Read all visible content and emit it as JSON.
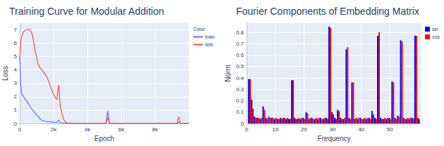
{
  "chart_data": [
    {
      "type": "line",
      "title": "Training Curve for Modular Addition",
      "x_label": "Epoch",
      "y_label": "Loss",
      "legend_title": "Color",
      "legend": "right",
      "grid": true,
      "x": [
        0,
        50,
        100,
        200,
        300,
        400,
        500,
        600,
        700,
        800,
        900,
        1000,
        1100,
        1200,
        1300,
        1400,
        1500,
        1600,
        1700,
        1800,
        1900,
        2000,
        2100,
        2200,
        2300,
        2400,
        2500,
        2600,
        2700,
        2800,
        3000,
        3500,
        4000,
        4500,
        5000,
        5100,
        5200,
        5300,
        5500,
        6000,
        6500,
        7000,
        7500,
        8000,
        8500,
        9000,
        9300,
        9400,
        9500,
        10000
      ],
      "series": [
        {
          "name": "train",
          "color": "#636efa",
          "values": [
            5.0,
            3.2,
            2.3,
            2.05,
            1.85,
            1.7,
            1.5,
            1.3,
            1.1,
            0.95,
            0.8,
            0.65,
            0.5,
            0.35,
            0.25,
            0.2,
            0.17,
            0.15,
            0.13,
            0.12,
            0.11,
            0.1,
            0.09,
            0.08,
            0.25,
            0.06,
            0.04,
            0.03,
            0.02,
            0.02,
            0.01,
            0.01,
            0.01,
            0.01,
            0.01,
            0.01,
            0.95,
            0.02,
            0.01,
            0.01,
            0.01,
            0.01,
            0.01,
            0.01,
            0.01,
            0.01,
            0.01,
            0.1,
            0.01,
            0.01
          ]
        },
        {
          "name": "test",
          "color": "#ef553b",
          "values": [
            4.8,
            6.0,
            6.4,
            6.8,
            6.95,
            7.0,
            7.05,
            7.0,
            6.8,
            6.3,
            5.5,
            4.9,
            4.4,
            4.15,
            4.0,
            3.85,
            3.7,
            3.5,
            3.2,
            2.8,
            2.5,
            2.2,
            1.9,
            1.8,
            2.9,
            1.3,
            0.7,
            0.3,
            0.15,
            0.05,
            0.03,
            0.02,
            0.02,
            0.02,
            0.02,
            0.02,
            0.45,
            0.02,
            0.02,
            0.02,
            0.02,
            0.02,
            0.02,
            0.02,
            0.02,
            0.02,
            0.02,
            0.5,
            0.02,
            0.02
          ]
        }
      ],
      "xlim": [
        0,
        10000
      ],
      "xticks": [
        0,
        {
          "value": 2000,
          "label": "2k"
        },
        {
          "value": 4000,
          "label": "4k"
        },
        {
          "value": 6000,
          "label": "6k"
        },
        {
          "value": 8000,
          "label": "8k"
        }
      ],
      "ylim": [
        0,
        7.5
      ],
      "yticks": [
        0,
        1,
        2,
        3,
        4,
        5,
        6,
        7
      ]
    },
    {
      "type": "bar",
      "title": "Fourier Components of Embedding Matrix",
      "x_label": "Frequency",
      "y_label": "Norm",
      "legend": "right",
      "grid": true,
      "x": [
        1,
        2,
        3,
        4,
        5,
        6,
        7,
        8,
        9,
        10,
        11,
        12,
        13,
        14,
        15,
        16,
        17,
        18,
        19,
        20,
        21,
        22,
        23,
        24,
        25,
        26,
        27,
        28,
        29,
        30,
        31,
        32,
        33,
        34,
        35,
        36,
        37,
        38,
        39,
        40,
        41,
        42,
        43,
        44,
        45,
        46,
        47,
        48,
        49,
        50,
        51,
        52,
        53,
        54,
        55,
        56,
        57,
        58,
        59,
        60
      ],
      "series": [
        {
          "name": "sin",
          "color": "#0000ff",
          "values": [
            0.39,
            0.21,
            0.06,
            0.05,
            0.04,
            0.15,
            0.05,
            0.06,
            0.05,
            0.04,
            0.04,
            0.05,
            0.05,
            0.04,
            0.04,
            0.38,
            0.05,
            0.04,
            0.04,
            0.05,
            0.1,
            0.04,
            0.05,
            0.04,
            0.04,
            0.05,
            0.04,
            0.05,
            0.85,
            0.1,
            0.05,
            0.12,
            0.05,
            0.04,
            0.65,
            0.05,
            0.36,
            0.04,
            0.04,
            0.05,
            0.04,
            0.04,
            0.05,
            0.11,
            0.05,
            0.77,
            0.05,
            0.04,
            0.04,
            0.05,
            0.37,
            0.05,
            0.07,
            0.73,
            0.05,
            0.04,
            0.04,
            0.05,
            0.77,
            0.05
          ]
        },
        {
          "name": "cos",
          "color": "#ff0000",
          "values": [
            0.39,
            0.13,
            0.05,
            0.05,
            0.05,
            0.12,
            0.04,
            0.05,
            0.05,
            0.05,
            0.04,
            0.04,
            0.05,
            0.05,
            0.04,
            0.38,
            0.04,
            0.05,
            0.05,
            0.04,
            0.09,
            0.05,
            0.04,
            0.05,
            0.05,
            0.04,
            0.05,
            0.04,
            0.84,
            0.08,
            0.04,
            0.11,
            0.04,
            0.05,
            0.67,
            0.04,
            0.36,
            0.05,
            0.05,
            0.04,
            0.05,
            0.05,
            0.04,
            0.08,
            0.04,
            0.8,
            0.04,
            0.05,
            0.05,
            0.04,
            0.36,
            0.04,
            0.06,
            0.72,
            0.04,
            0.05,
            0.05,
            0.04,
            0.77,
            0.04
          ]
        }
      ],
      "xlim": [
        0,
        61
      ],
      "xticks": [
        0,
        10,
        20,
        30,
        40,
        50
      ],
      "ylim": [
        0,
        0.88
      ],
      "yticks": [
        0,
        0.1,
        0.2,
        0.3,
        0.4,
        0.5,
        0.6,
        0.7,
        0.8
      ]
    }
  ]
}
